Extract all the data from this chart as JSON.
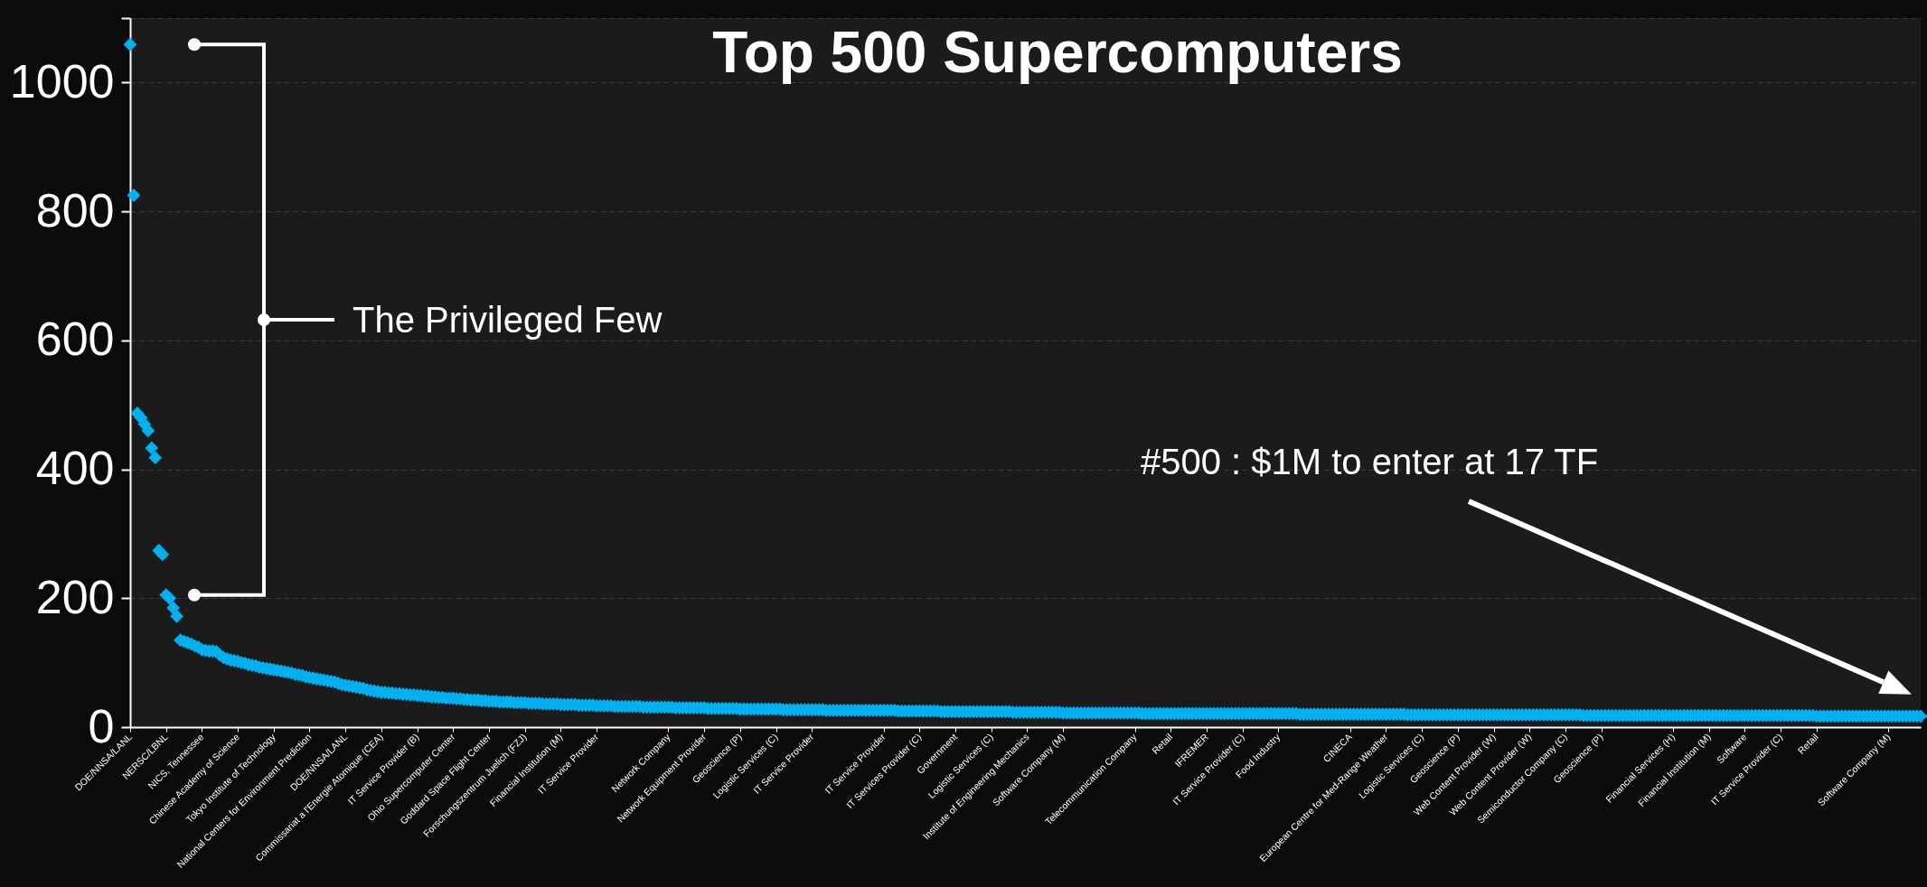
{
  "chart_data": {
    "type": "scatter",
    "title": "Top 500 Supercomputers",
    "annotations": [
      "The Privileged Few",
      "#500 : $1M to enter at 17 TF"
    ],
    "categories": [
      "DOE/NNSA/LANL",
      null,
      null,
      null,
      null,
      null,
      null,
      null,
      null,
      null,
      "NERSC/LBNL",
      null,
      null,
      null,
      null,
      null,
      null,
      null,
      null,
      null,
      "NICS, Tennessee",
      null,
      null,
      null,
      null,
      null,
      null,
      null,
      null,
      null,
      "Chinese Academy of Science",
      null,
      null,
      null,
      null,
      null,
      null,
      null,
      null,
      null,
      "Tokyo Institute of Technology",
      null,
      null,
      null,
      null,
      null,
      null,
      null,
      null,
      null,
      "National Centers for Environment Prediction",
      null,
      null,
      null,
      null,
      null,
      null,
      null,
      null,
      null,
      "DOE/NNSA/LANL",
      null,
      null,
      null,
      null,
      null,
      null,
      null,
      null,
      null,
      "Commissariat a l'Energie Atomique (CEA)",
      null,
      null,
      null,
      null,
      null,
      null,
      null,
      null,
      null,
      "IT Service Provider (B)",
      null,
      null,
      null,
      null,
      null,
      null,
      null,
      null,
      null,
      "Ohio Supercomputer Center",
      null,
      null,
      null,
      null,
      null,
      null,
      null,
      null,
      null,
      "Goddard Space Flight Center",
      null,
      null,
      null,
      null,
      null,
      null,
      null,
      null,
      null,
      "Forschungszentrum Juelich (FZJ)",
      null,
      null,
      null,
      null,
      null,
      null,
      null,
      null,
      null,
      "Financial Institution (M)",
      null,
      null,
      null,
      null,
      null,
      null,
      null,
      null,
      null,
      "IT Service Provider",
      null,
      null,
      null,
      null,
      null,
      null,
      null,
      null,
      null,
      null,
      null,
      null,
      null,
      null,
      null,
      null,
      null,
      null,
      null,
      "Network Company",
      null,
      null,
      null,
      null,
      null,
      null,
      null,
      null,
      null,
      "Network Equipment Provider",
      null,
      null,
      null,
      null,
      null,
      null,
      null,
      null,
      null,
      "Geoscience (P)",
      null,
      null,
      null,
      null,
      null,
      null,
      null,
      null,
      null,
      "Logistic Services (C)",
      null,
      null,
      null,
      null,
      null,
      null,
      null,
      null,
      null,
      "IT Service Provider",
      null,
      null,
      null,
      null,
      null,
      null,
      null,
      null,
      null,
      null,
      null,
      null,
      null,
      null,
      null,
      null,
      null,
      null,
      null,
      "IT Service Provider",
      null,
      null,
      null,
      null,
      null,
      null,
      null,
      null,
      null,
      "IT Services Provider (C)",
      null,
      null,
      null,
      null,
      null,
      null,
      null,
      null,
      null,
      "Government",
      null,
      null,
      null,
      null,
      null,
      null,
      null,
      null,
      null,
      "Logistic Services (C)",
      null,
      null,
      null,
      null,
      null,
      null,
      null,
      null,
      null,
      "Institute of Engineering Mechanics",
      null,
      null,
      null,
      null,
      null,
      null,
      null,
      null,
      null,
      "Software Company (M)",
      null,
      null,
      null,
      null,
      null,
      null,
      null,
      null,
      null,
      null,
      null,
      null,
      null,
      null,
      null,
      null,
      null,
      null,
      null,
      "Telecommunication Company",
      null,
      null,
      null,
      null,
      null,
      null,
      null,
      null,
      null,
      "Retail",
      null,
      null,
      null,
      null,
      null,
      null,
      null,
      null,
      null,
      "IFREMER",
      null,
      null,
      null,
      null,
      null,
      null,
      null,
      null,
      null,
      "IT Service Provider (C)",
      null,
      null,
      null,
      null,
      null,
      null,
      null,
      null,
      null,
      "Food Industry",
      null,
      null,
      null,
      null,
      null,
      null,
      null,
      null,
      null,
      null,
      null,
      null,
      null,
      null,
      null,
      null,
      null,
      null,
      null,
      "CINECA",
      null,
      null,
      null,
      null,
      null,
      null,
      null,
      null,
      null,
      "European Centre for Med-Range Weather",
      null,
      null,
      null,
      null,
      null,
      null,
      null,
      null,
      null,
      "Logistic Services (C)",
      null,
      null,
      null,
      null,
      null,
      null,
      null,
      null,
      null,
      "Geoscience (P)",
      null,
      null,
      null,
      null,
      null,
      null,
      null,
      null,
      null,
      "Web Content Provider (W)",
      null,
      null,
      null,
      null,
      null,
      null,
      null,
      null,
      null,
      "Web Content Provider (W)",
      null,
      null,
      null,
      null,
      null,
      null,
      null,
      null,
      null,
      "Semiconductor Company (C)",
      null,
      null,
      null,
      null,
      null,
      null,
      null,
      null,
      null,
      "Geoscience (P)",
      null,
      null,
      null,
      null,
      null,
      null,
      null,
      null,
      null,
      null,
      null,
      null,
      null,
      null,
      null,
      null,
      null,
      null,
      null,
      "Financial Services (H)",
      null,
      null,
      null,
      null,
      null,
      null,
      null,
      null,
      null,
      "Financial Institution (M)",
      null,
      null,
      null,
      null,
      null,
      null,
      null,
      null,
      null,
      "Software",
      null,
      null,
      null,
      null,
      null,
      null,
      null,
      null,
      null,
      "IT Service Provider (C)",
      null,
      null,
      null,
      null,
      null,
      null,
      null,
      null,
      null,
      "Retail",
      null,
      null,
      null,
      null,
      null,
      null,
      null,
      null,
      null,
      null,
      null,
      null,
      null,
      null,
      null,
      null,
      null,
      null,
      null,
      "Software Company (M)",
      null,
      null,
      null,
      null,
      null,
      null,
      null,
      null,
      null
    ],
    "series": [
      {
        "color": "#00b0f0",
        "values": [
          1059,
          825,
          487,
          480,
          470,
          460,
          433,
          418,
          274,
          268,
          205,
          200,
          185,
          172,
          135,
          133,
          131,
          129,
          126,
          124,
          120,
          119,
          118,
          118,
          117,
          112,
          108,
          106,
          104,
          103,
          102,
          100,
          99,
          97,
          96,
          95,
          93,
          92,
          91,
          90,
          89,
          88,
          87,
          86,
          85,
          84,
          82,
          81,
          80,
          78,
          77,
          76,
          75,
          74,
          73,
          72,
          71,
          70,
          68,
          66,
          65,
          64,
          63,
          62,
          61,
          60,
          58,
          57,
          56,
          55,
          54,
          54,
          53,
          53,
          52,
          52,
          51,
          51,
          50,
          50,
          49,
          49,
          48,
          48,
          47,
          47,
          46,
          46,
          45,
          45,
          45,
          44,
          44,
          43,
          43,
          42,
          42,
          42,
          41,
          41,
          40,
          40,
          40,
          39,
          39,
          39,
          39,
          38,
          38,
          38,
          38,
          37,
          37,
          37,
          37,
          36,
          36,
          36,
          36,
          36,
          35,
          35,
          35,
          35,
          35,
          34,
          34,
          34,
          34,
          34,
          33,
          33,
          33,
          33,
          33,
          32,
          32,
          32,
          32,
          32,
          32,
          32,
          32,
          31,
          31,
          31,
          31,
          31,
          31,
          31,
          31,
          31,
          30,
          30,
          30,
          30,
          30,
          30,
          30,
          30,
          30,
          29,
          29,
          29,
          29,
          29,
          29,
          29,
          29,
          29,
          28,
          28,
          28,
          28,
          28,
          28,
          28,
          28,
          28,
          28,
          28,
          28,
          27,
          27,
          27,
          27,
          27,
          27,
          27,
          27,
          27,
          27,
          27,
          27,
          26,
          26,
          26,
          26,
          26,
          26,
          26,
          26,
          26,
          26,
          26,
          26,
          26,
          26,
          26,
          26,
          26,
          26,
          26,
          26,
          25,
          25,
          25,
          25,
          25,
          25,
          25,
          25,
          25,
          25,
          25,
          25,
          24,
          24,
          24,
          24,
          24,
          24,
          24,
          24,
          24,
          24,
          24,
          24,
          24,
          24,
          24,
          24,
          24,
          24,
          24,
          24,
          23,
          23,
          23,
          23,
          23,
          23,
          23,
          23,
          23,
          23,
          23,
          23,
          23,
          23,
          22,
          22,
          22,
          22,
          22,
          22,
          22,
          22,
          22,
          22,
          22,
          22,
          22,
          22,
          22,
          22,
          22,
          22,
          22,
          22,
          22,
          22,
          21,
          21,
          21,
          21,
          21,
          21,
          21,
          21,
          21,
          21,
          21,
          21,
          21,
          21,
          21,
          21,
          21,
          21,
          21,
          21,
          21,
          21,
          21,
          21,
          21,
          21,
          21,
          21,
          21,
          21,
          21,
          21,
          21,
          21,
          21,
          21,
          21,
          21,
          21,
          21,
          21,
          21,
          21,
          21,
          20,
          20,
          20,
          20,
          20,
          20,
          20,
          20,
          20,
          20,
          20,
          20,
          20,
          20,
          20,
          20,
          20,
          20,
          20,
          20,
          20,
          20,
          20,
          20,
          20,
          20,
          20,
          20,
          20,
          20,
          19,
          19,
          19,
          19,
          19,
          19,
          19,
          19,
          19,
          19,
          19,
          19,
          19,
          19,
          19,
          19,
          19,
          19,
          19,
          19,
          19,
          19,
          19,
          19,
          19,
          19,
          19,
          19,
          19,
          19,
          19,
          19,
          19,
          19,
          19,
          19,
          19,
          19,
          19,
          19,
          19,
          19,
          19,
          19,
          19,
          19,
          19,
          19,
          19,
          18,
          18,
          18,
          18,
          18,
          18,
          18,
          18,
          18,
          18,
          18,
          18,
          18,
          18,
          18,
          18,
          18,
          18,
          18,
          18,
          18,
          18,
          18,
          18,
          18,
          18,
          18,
          18,
          18,
          18,
          18,
          18,
          18,
          18,
          18,
          18,
          18,
          18,
          18,
          18,
          18,
          18,
          18,
          18,
          18,
          18,
          18,
          18,
          18,
          18,
          18,
          18,
          18,
          18,
          18,
          18,
          18,
          18,
          18,
          18,
          18,
          18,
          18,
          18,
          18,
          17,
          17,
          17,
          17,
          17,
          17,
          17,
          17,
          17,
          17,
          17,
          17,
          17,
          17,
          17,
          17,
          17,
          17,
          17,
          17,
          17,
          17,
          17,
          17,
          17,
          17,
          17,
          17,
          17,
          17
        ]
      }
    ],
    "ylim": [
      0,
      1100
    ],
    "yticks": [
      0,
      200,
      400,
      600,
      800,
      1000,
      {
        "value": 1100,
        "label": null
      }
    ],
    "grid": "y",
    "marker": "diamond"
  }
}
